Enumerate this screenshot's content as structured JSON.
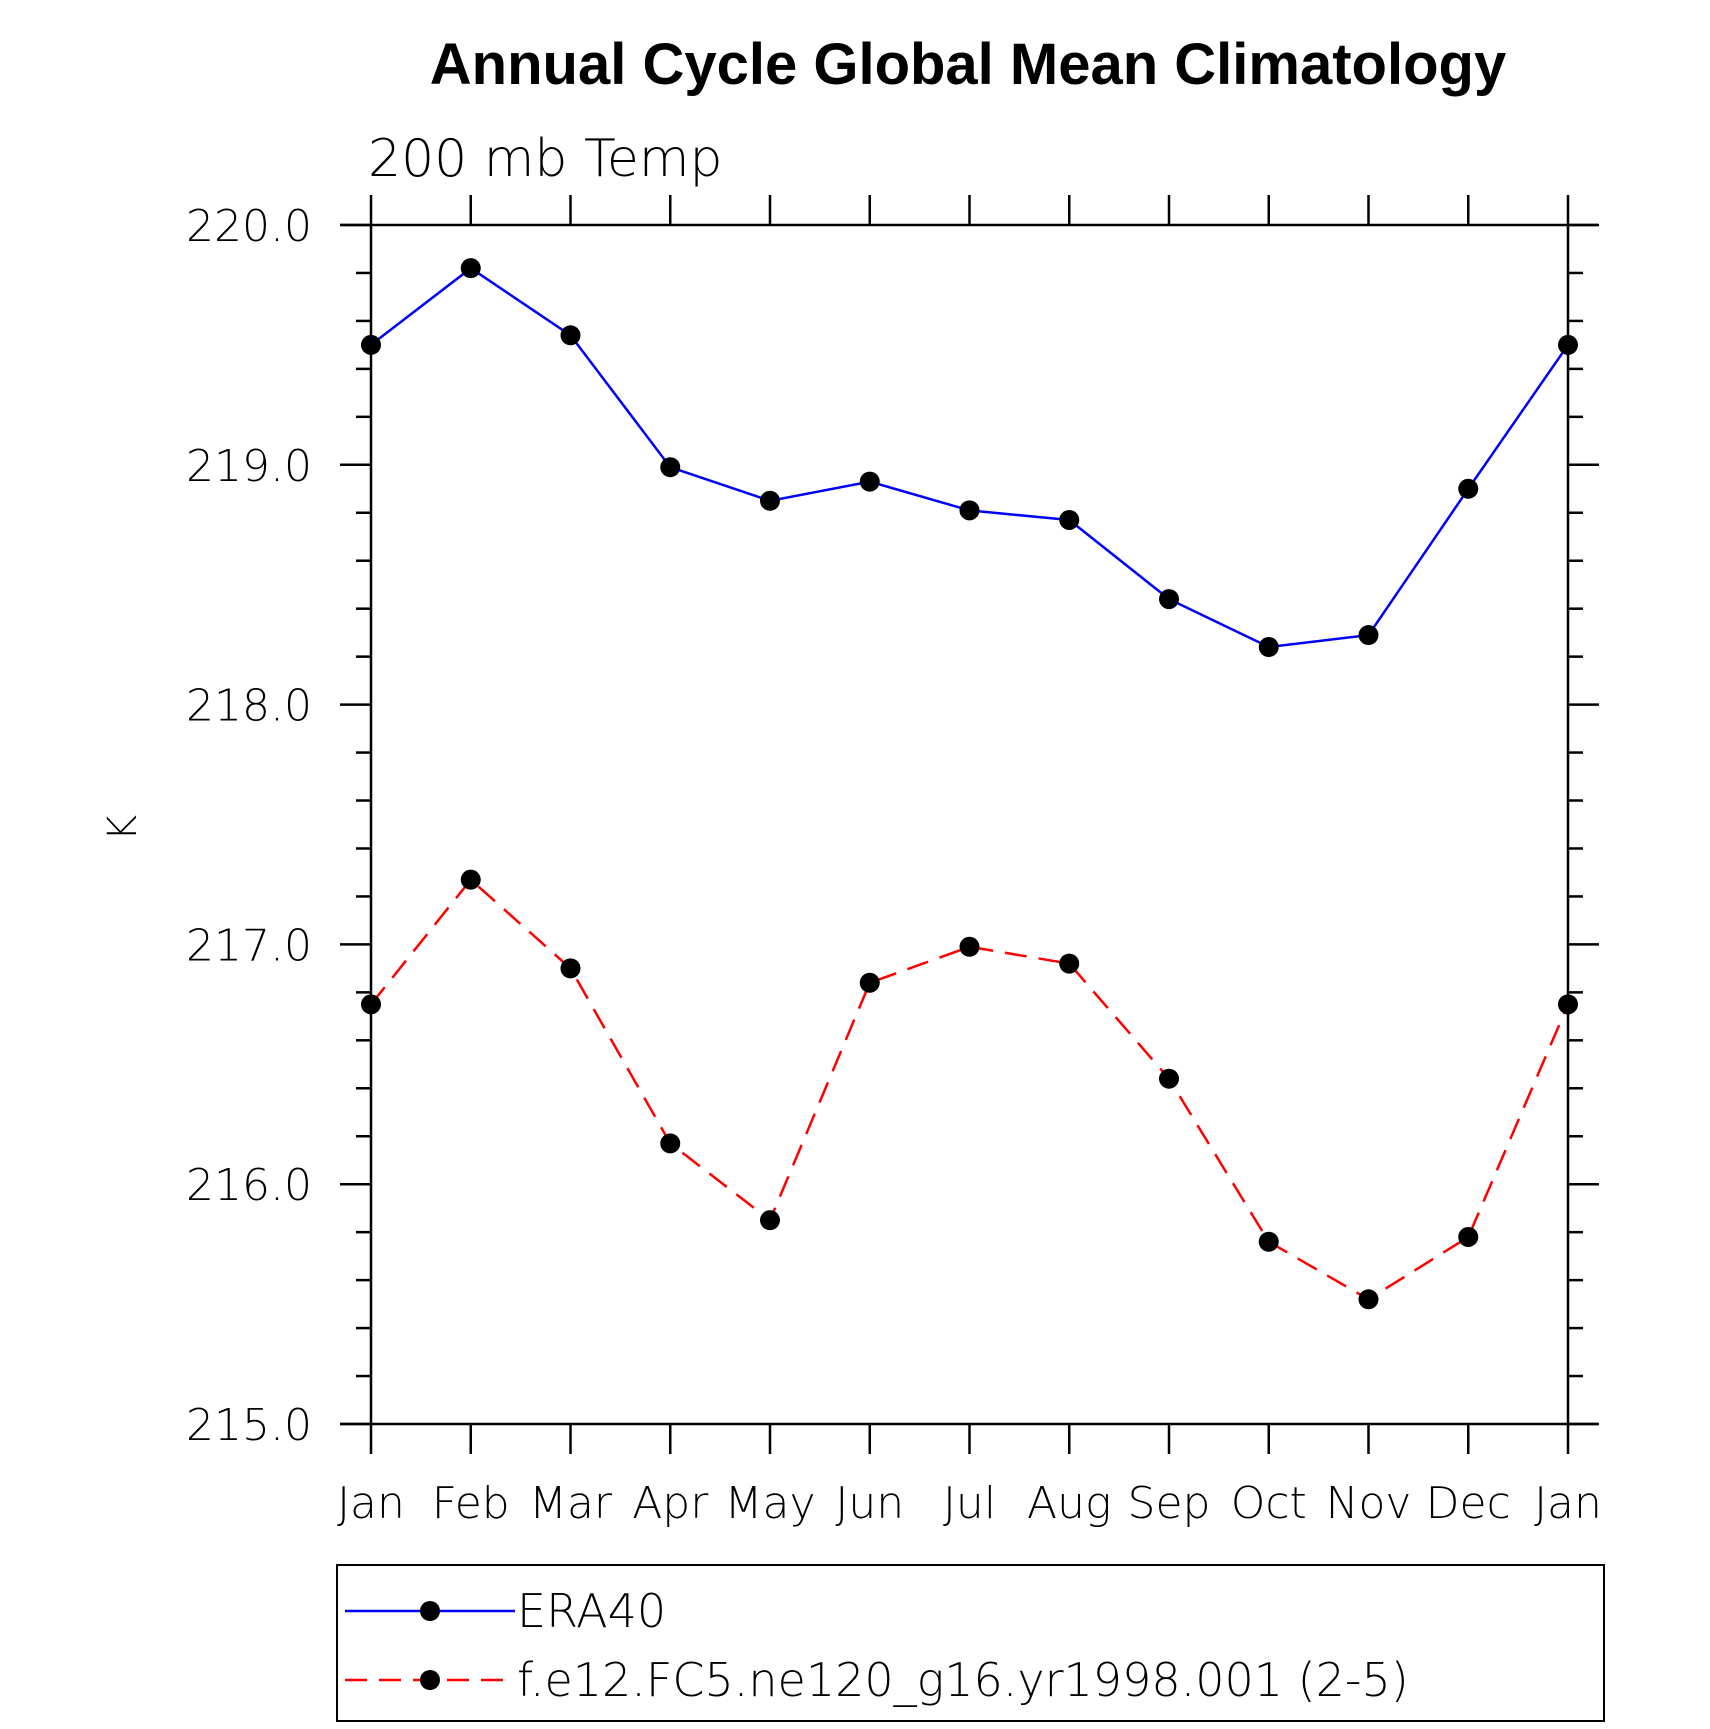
{
  "chart_data": {
    "type": "line",
    "title": "Annual Cycle Global Mean Climatology",
    "subtitle": "200 mb Temp",
    "xlabel": "",
    "ylabel": "K",
    "categories": [
      "Jan",
      "Feb",
      "Mar",
      "Apr",
      "May",
      "Jun",
      "Jul",
      "Aug",
      "Sep",
      "Oct",
      "Nov",
      "Dec",
      "Jan"
    ],
    "ylim": [
      215.0,
      220.0
    ],
    "yticks": [
      "215.0",
      "216.0",
      "217.0",
      "218.0",
      "219.0",
      "220.0"
    ],
    "series": [
      {
        "name": "ERA40",
        "color": "#0000ff",
        "dash": "solid",
        "marker": "filled-circle",
        "values": [
          219.5,
          219.82,
          219.54,
          218.99,
          218.85,
          218.93,
          218.81,
          218.77,
          218.44,
          218.24,
          218.29,
          218.9,
          219.5
        ]
      },
      {
        "name": "f.e12.FC5.ne120_g16.yr1998.001 (2-5)",
        "color": "#ff0000",
        "dash": "dashed",
        "marker": "filled-circle",
        "values": [
          216.75,
          217.27,
          216.9,
          216.17,
          215.85,
          216.84,
          216.99,
          216.92,
          216.44,
          215.76,
          215.52,
          215.78,
          216.75
        ]
      }
    ],
    "legend": {
      "position": "bottom",
      "entries": [
        "ERA40",
        "f.e12.FC5.ne120_g16.yr1998.001 (2-5)"
      ]
    },
    "grid": false
  }
}
